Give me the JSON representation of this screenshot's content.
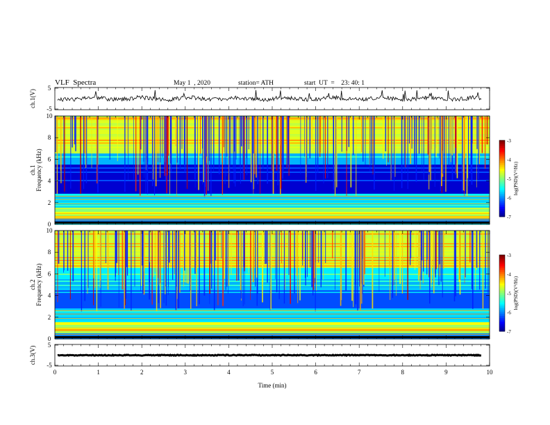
{
  "header": {
    "title": "VLF  Spectra",
    "date": "May 1  , 2020",
    "station": "station= ATH",
    "start": "start  UT  =    23: 40: 1"
  },
  "chart_data": [
    {
      "type": "line",
      "panel": "ch1-waveform",
      "ylabel": "ch.1(V)",
      "ylim": [
        -5,
        5
      ],
      "yticks": [
        "5",
        "-5"
      ],
      "series": [
        {
          "color": "#000000",
          "level": 0,
          "noise": "irregular with spikes"
        }
      ]
    },
    {
      "type": "heatmap",
      "panel": "ch1-spectrogram",
      "ylabel": "ch.1",
      "ylabel2": "Frequency  (kHz)",
      "ylim": [
        0,
        10
      ],
      "yticks": [
        "0",
        "2",
        "4",
        "6",
        "8",
        "10"
      ],
      "colorbar": {
        "label": "log(PSD)(V²/Hz)",
        "ticks": [
          "-3",
          "-4",
          "-5",
          "-6",
          "-7"
        ],
        "range": [
          -7,
          -3
        ]
      }
    },
    {
      "type": "heatmap",
      "panel": "ch2-spectrogram",
      "ylabel": "ch.2",
      "ylabel2": "Frequency  (kHz)",
      "ylim": [
        0,
        10
      ],
      "yticks": [
        "0",
        "2",
        "4",
        "6",
        "8",
        "10"
      ],
      "colorbar": {
        "label": "log(PSD)(V²/Hz)",
        "ticks": [
          "-3",
          "-4",
          "-5",
          "-6",
          "-7"
        ],
        "range": [
          -7,
          -3
        ]
      }
    },
    {
      "type": "line",
      "panel": "ch3-waveform",
      "ylabel": "ch.3(V)",
      "ylim": [
        -5,
        5
      ],
      "yticks": [
        "5",
        "-5"
      ],
      "series": [
        {
          "color": "#000000",
          "level": 0,
          "noise": "flat"
        }
      ]
    }
  ],
  "xaxis": {
    "label": "Time  (min)",
    "range": [
      0,
      10
    ],
    "ticks": [
      "0",
      "1",
      "2",
      "3",
      "4",
      "5",
      "6",
      "7",
      "8",
      "9",
      "10"
    ]
  }
}
